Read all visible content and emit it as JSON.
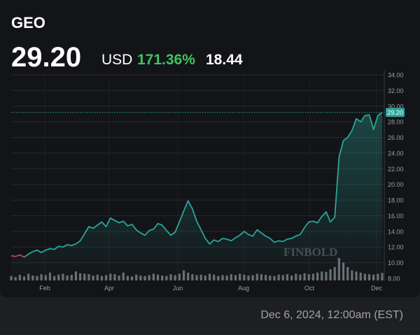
{
  "header": {
    "ticker": "GEO",
    "price": "29.20",
    "currency": "USD",
    "change_percent": "171.36%",
    "change_value": "18.44"
  },
  "timestamp": "Dec 6, 2024, 12:00am (EST)",
  "watermark": "FINBOLD",
  "colors": {
    "background": "#131417",
    "line": "#2aa59a",
    "positive": "#3fc35f",
    "negative": "#e04545",
    "volume": "#6b6e74"
  },
  "chart_data": {
    "type": "area",
    "title": "",
    "xlabel": "",
    "ylabel": "",
    "ylim": [
      8,
      34
    ],
    "y_ticks": [
      "34.00",
      "32.00",
      "30.00",
      "28.00",
      "26.00",
      "24.00",
      "22.00",
      "20.00",
      "18.00",
      "16.00",
      "14.00",
      "12.00",
      "10.00",
      "8.00"
    ],
    "x_tick_labels": [
      "Feb",
      "Apr",
      "Jun",
      "Aug",
      "Oct",
      "Dec"
    ],
    "last_price_label": "29.20",
    "grid": true,
    "series": [
      {
        "values": [
          10.9,
          10.8,
          11.0,
          10.7,
          11.1,
          11.4,
          11.6,
          11.3,
          11.6,
          11.8,
          11.7,
          12.1,
          12.0,
          12.3,
          12.2,
          12.4,
          12.8,
          13.7,
          14.6,
          14.4,
          14.8,
          15.2,
          14.6,
          15.7,
          15.4,
          15.1,
          15.3,
          14.7,
          14.9,
          14.2,
          13.8,
          13.5,
          14.1,
          14.3,
          15.0,
          14.8,
          14.1,
          13.5,
          13.9,
          15.2,
          16.6,
          17.9,
          16.9,
          15.3,
          14.2,
          13.1,
          12.4,
          12.9,
          12.7,
          13.1,
          13.0,
          12.8,
          13.2,
          13.5,
          14.0,
          13.6,
          13.4,
          14.2,
          13.8,
          13.4,
          13.1,
          12.6,
          12.8,
          12.7,
          13.0,
          13.1,
          13.4,
          13.6,
          14.5,
          15.2,
          15.3,
          15.1,
          15.9,
          16.5,
          15.2,
          15.8,
          23.5,
          25.6,
          26.0,
          26.9,
          28.4,
          28.0,
          28.8,
          28.9,
          27.0,
          28.8,
          29.2
        ]
      }
    ],
    "volume": [
      0.2,
      0.15,
      0.25,
      0.18,
      0.3,
      0.22,
      0.2,
      0.28,
      0.24,
      0.35,
      0.2,
      0.26,
      0.3,
      0.22,
      0.25,
      0.4,
      0.32,
      0.3,
      0.28,
      0.22,
      0.26,
      0.2,
      0.24,
      0.3,
      0.28,
      0.22,
      0.35,
      0.2,
      0.18,
      0.26,
      0.22,
      0.2,
      0.24,
      0.3,
      0.26,
      0.22,
      0.2,
      0.28,
      0.24,
      0.3,
      0.45,
      0.35,
      0.28,
      0.24,
      0.26,
      0.22,
      0.3,
      0.26,
      0.2,
      0.24,
      0.22,
      0.28,
      0.24,
      0.3,
      0.26,
      0.22,
      0.24,
      0.3,
      0.28,
      0.25,
      0.22,
      0.2,
      0.26,
      0.24,
      0.28,
      0.22,
      0.3,
      0.26,
      0.32,
      0.28,
      0.3,
      0.35,
      0.4,
      0.38,
      0.5,
      0.6,
      1.0,
      0.8,
      0.6,
      0.45,
      0.4,
      0.35,
      0.3,
      0.28,
      0.26,
      0.3,
      0.34
    ]
  }
}
